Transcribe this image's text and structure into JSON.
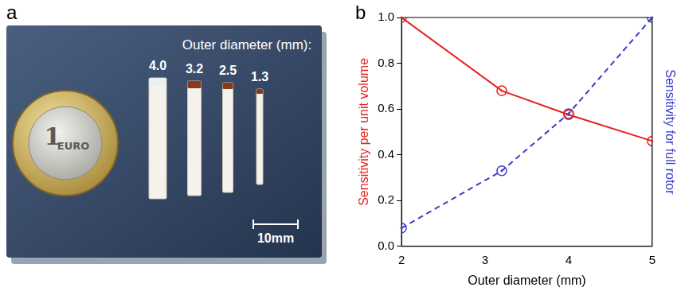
{
  "photo_panel": {
    "letter": "a",
    "heading": "Outer diameter (mm):",
    "rotor_labels": [
      "4.0",
      "3.2",
      "2.5",
      "1.3"
    ],
    "scale_bar": "10mm",
    "coin": {
      "numeral": "1",
      "text": "EURO"
    }
  },
  "chart_letter": "b",
  "chart_data": {
    "type": "line",
    "xlabel": "Outer diameter (mm)",
    "ylabel": "Sensitivity per unit volume",
    "y2label": "Sensitivity for full rotor",
    "x": [
      2,
      3.2,
      4,
      5
    ],
    "xlim": [
      2,
      5
    ],
    "xticks": [
      2,
      3,
      4,
      5
    ],
    "ylim": [
      0,
      1
    ],
    "yticks": [
      {
        "value": 0,
        "label": "0.0"
      },
      {
        "value": 0.2,
        "label": "0.2"
      },
      {
        "value": 0.4,
        "label": "0.4"
      },
      {
        "value": 0.6,
        "label": "0.6"
      },
      {
        "value": 0.8,
        "label": "0.8"
      },
      {
        "value": 1,
        "label": "1.0"
      }
    ],
    "y2lim": [
      0,
      1
    ],
    "grid": false,
    "series": [
      {
        "color": "#e8201e",
        "values": [
          1.0,
          0.68,
          0.575,
          0.46
        ],
        "marker": "circle",
        "line_style": "solid"
      },
      {
        "color": "#3c3cc8",
        "values": [
          0.08,
          0.33,
          0.58,
          1.0
        ],
        "marker": "circle",
        "line_style": "dashed",
        "axis": "y2"
      }
    ]
  }
}
